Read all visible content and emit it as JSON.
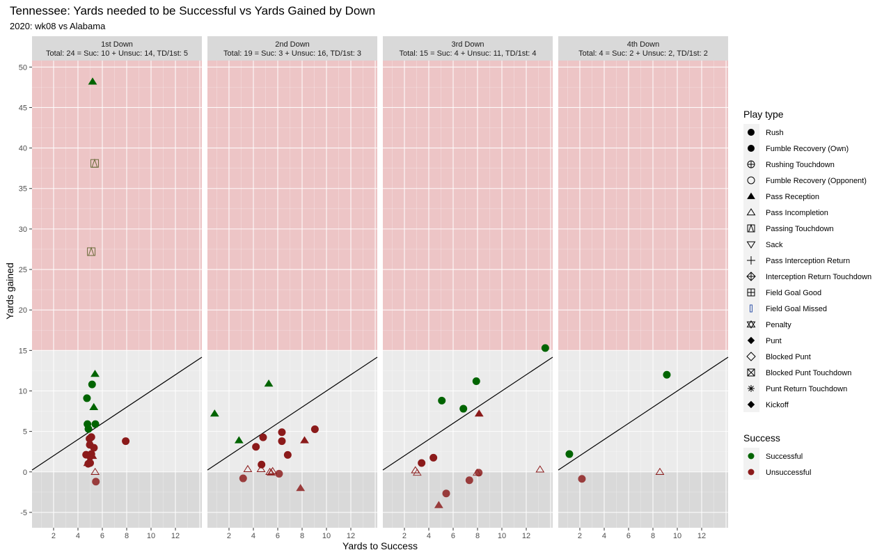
{
  "title": "Tennessee: Yards needed to be Successful vs Yards Gained by Down",
  "subtitle": "2020: wk08 vs Alabama",
  "colors": {
    "successful": "#006400",
    "unsuccessful": "#8B1A1A",
    "success_zone": "#EDC5C6",
    "loss_zone": "#D9D9D9",
    "panel_bg": "#EBEBEB",
    "strip_bg": "#D9D9D9"
  },
  "chart_data": {
    "type": "scatter",
    "xlabel": "Yards to Success",
    "ylabel": "Yards gained",
    "xlim": [
      0.23,
      14.17
    ],
    "ylim": [
      -6.9,
      50.8
    ],
    "xticks": [
      2,
      4,
      6,
      8,
      10,
      12
    ],
    "yticks": [
      -5,
      0,
      5,
      10,
      15,
      20,
      25,
      30,
      35,
      40,
      45,
      50
    ],
    "grid": true,
    "reference_line": "y = x",
    "shaded_regions": [
      {
        "from": 15,
        "to": 50.8,
        "meaning": "success zone"
      },
      {
        "from": -6.9,
        "to": 0,
        "meaning": "loss"
      }
    ],
    "legend_position": "right",
    "panels": [
      {
        "strip": "1st Down",
        "summary": "Total: 24 = Suc: 10 + Unsuc: 14, TD/1st: 5",
        "points": [
          {
            "x": 5.2,
            "y": 48.2,
            "type": "Pass Reception",
            "success": true
          },
          {
            "x": 5.37,
            "y": 38.1,
            "type": "Passing Touchdown",
            "success": true
          },
          {
            "x": 5.09,
            "y": 27.2,
            "type": "Passing Touchdown",
            "success": true
          },
          {
            "x": 5.4,
            "y": 12.1,
            "type": "Pass Reception",
            "success": true
          },
          {
            "x": 5.16,
            "y": 10.8,
            "type": "Rush",
            "success": true
          },
          {
            "x": 4.74,
            "y": 9.1,
            "type": "Rush",
            "success": true
          },
          {
            "x": 5.3,
            "y": 8.0,
            "type": "Pass Reception",
            "success": true
          },
          {
            "x": 4.78,
            "y": 5.9,
            "type": "Rush",
            "success": true
          },
          {
            "x": 5.43,
            "y": 5.9,
            "type": "Rush",
            "success": true
          },
          {
            "x": 4.86,
            "y": 5.3,
            "type": "Rush",
            "success": true
          },
          {
            "x": 4.95,
            "y": 4.1,
            "type": "Rush",
            "success": false
          },
          {
            "x": 5.1,
            "y": 4.3,
            "type": "Rush",
            "success": false
          },
          {
            "x": 4.97,
            "y": 3.35,
            "type": "Rush",
            "success": false
          },
          {
            "x": 5.31,
            "y": 2.98,
            "type": "Rush",
            "success": false
          },
          {
            "x": 4.67,
            "y": 2.12,
            "type": "Rush",
            "success": false
          },
          {
            "x": 5.1,
            "y": 2.2,
            "type": "Rush",
            "success": false
          },
          {
            "x": 5.0,
            "y": 1.9,
            "type": "Rush",
            "success": false
          },
          {
            "x": 5.2,
            "y": 1.97,
            "type": "Pass Reception",
            "success": false
          },
          {
            "x": 4.8,
            "y": 1.1,
            "type": "Pass Reception",
            "success": false
          },
          {
            "x": 5.0,
            "y": 1.1,
            "type": "Rush",
            "success": false
          },
          {
            "x": 4.85,
            "y": 1.0,
            "type": "Rush",
            "success": false
          },
          {
            "x": 7.92,
            "y": 3.8,
            "type": "Rush",
            "success": false
          },
          {
            "x": 5.41,
            "y": 0,
            "type": "Pass Incompletion",
            "success": false
          },
          {
            "x": 5.47,
            "y": -1.2,
            "type": "Rush",
            "success": false
          }
        ]
      },
      {
        "strip": "2nd Down",
        "summary": "Total: 19 = Suc: 3 + Unsuc: 16, TD/1st: 3",
        "points": [
          {
            "x": 5.26,
            "y": 10.9,
            "type": "Pass Reception",
            "success": true
          },
          {
            "x": 0.82,
            "y": 7.2,
            "type": "Pass Reception",
            "success": true
          },
          {
            "x": 2.82,
            "y": 3.9,
            "type": "Pass Reception",
            "success": true
          },
          {
            "x": 4.8,
            "y": 4.27,
            "type": "Rush",
            "success": false
          },
          {
            "x": 4.21,
            "y": 3.1,
            "type": "Rush",
            "success": false
          },
          {
            "x": 6.34,
            "y": 4.9,
            "type": "Rush",
            "success": false
          },
          {
            "x": 6.34,
            "y": 3.8,
            "type": "Rush",
            "success": false
          },
          {
            "x": 9.05,
            "y": 5.27,
            "type": "Rush",
            "success": false
          },
          {
            "x": 8.2,
            "y": 3.9,
            "type": "Pass Reception",
            "success": false
          },
          {
            "x": 6.82,
            "y": 2.1,
            "type": "Rush",
            "success": false
          },
          {
            "x": 4.67,
            "y": 0.9,
            "type": "Rush",
            "success": false
          },
          {
            "x": 3.54,
            "y": 0.35,
            "type": "Pass Incompletion",
            "success": false
          },
          {
            "x": 4.63,
            "y": 0.35,
            "type": "Pass Incompletion",
            "success": false
          },
          {
            "x": 5.35,
            "y": 0,
            "type": "Pass Incompletion",
            "success": false
          },
          {
            "x": 5.58,
            "y": 0.1,
            "type": "Pass Incompletion",
            "success": false
          },
          {
            "x": 5.46,
            "y": -0.1,
            "type": "Pass Incompletion",
            "success": false
          },
          {
            "x": 6.11,
            "y": -0.23,
            "type": "Rush",
            "success": false
          },
          {
            "x": 3.16,
            "y": -0.8,
            "type": "Rush",
            "success": false
          },
          {
            "x": 7.87,
            "y": -2.0,
            "type": "Pass Reception",
            "success": false
          }
        ]
      },
      {
        "strip": "3rd Down",
        "summary": "Total: 15 = Suc: 4 + Unsuc: 11, TD/1st: 4",
        "points": [
          {
            "x": 13.56,
            "y": 15.3,
            "type": "Rush",
            "success": true
          },
          {
            "x": 7.9,
            "y": 11.2,
            "type": "Rush",
            "success": true
          },
          {
            "x": 5.07,
            "y": 8.8,
            "type": "Rush",
            "success": true
          },
          {
            "x": 6.84,
            "y": 7.8,
            "type": "Rush",
            "success": true
          },
          {
            "x": 8.13,
            "y": 7.2,
            "type": "Pass Reception",
            "success": false
          },
          {
            "x": 4.38,
            "y": 1.75,
            "type": "Rush",
            "success": false
          },
          {
            "x": 3.41,
            "y": 1.1,
            "type": "Rush",
            "success": false
          },
          {
            "x": 2.9,
            "y": 0.2,
            "type": "Pass Incompletion",
            "success": false
          },
          {
            "x": 3.05,
            "y": -0.1,
            "type": "Pass Incompletion",
            "success": false
          },
          {
            "x": 7.96,
            "y": -0.1,
            "type": "Pass Incompletion",
            "success": false
          },
          {
            "x": 8.1,
            "y": -0.1,
            "type": "Rush",
            "success": false
          },
          {
            "x": 13.13,
            "y": 0.3,
            "type": "Pass Incompletion",
            "success": false
          },
          {
            "x": 7.33,
            "y": -1.03,
            "type": "Rush",
            "success": false
          },
          {
            "x": 5.43,
            "y": -2.66,
            "type": "Rush",
            "success": false
          },
          {
            "x": 4.82,
            "y": -4.1,
            "type": "Pass Reception",
            "success": false
          }
        ]
      },
      {
        "strip": "4th Down",
        "summary": "Total: 4 = Suc: 2 + Unsuc: 2, TD/1st: 2",
        "points": [
          {
            "x": 9.14,
            "y": 12.0,
            "type": "Rush",
            "success": true
          },
          {
            "x": 1.14,
            "y": 2.2,
            "type": "Rush",
            "success": true
          },
          {
            "x": 2.17,
            "y": -0.86,
            "type": "Rush",
            "success": false
          },
          {
            "x": 8.57,
            "y": 0,
            "type": "Pass Incompletion",
            "success": false
          }
        ]
      }
    ],
    "legend": {
      "play_type_title": "Play type",
      "play_types": [
        {
          "label": "Rush",
          "shape": "circle"
        },
        {
          "label": "Fumble Recovery (Own)",
          "shape": "circle"
        },
        {
          "label": "Rushing Touchdown",
          "shape": "circle-plus"
        },
        {
          "label": "Fumble Recovery (Opponent)",
          "shape": "circle-open"
        },
        {
          "label": "Pass Reception",
          "shape": "triangle"
        },
        {
          "label": "Pass Incompletion",
          "shape": "triangle-open"
        },
        {
          "label": "Passing Touchdown",
          "shape": "square-triangle"
        },
        {
          "label": "Sack",
          "shape": "triangle-down-open"
        },
        {
          "label": "Pass Interception Return",
          "shape": "plus"
        },
        {
          "label": "Interception Return Touchdown",
          "shape": "diamond-plus"
        },
        {
          "label": "Field Goal Good",
          "shape": "square-plus"
        },
        {
          "label": "Field Goal Missed",
          "shape": "small-rect"
        },
        {
          "label": "Penalty",
          "shape": "star-of-david"
        },
        {
          "label": "Punt",
          "shape": "diamond"
        },
        {
          "label": "Blocked Punt",
          "shape": "diamond-open"
        },
        {
          "label": "Blocked Punt Touchdown",
          "shape": "square-x"
        },
        {
          "label": "Punt Return Touchdown",
          "shape": "asterisk"
        },
        {
          "label": "Kickoff",
          "shape": "diamond"
        }
      ],
      "success_title": "Success",
      "success_items": [
        {
          "label": "Successful",
          "color": "#006400"
        },
        {
          "label": "Unsuccessful",
          "color": "#8B1A1A"
        }
      ]
    }
  }
}
